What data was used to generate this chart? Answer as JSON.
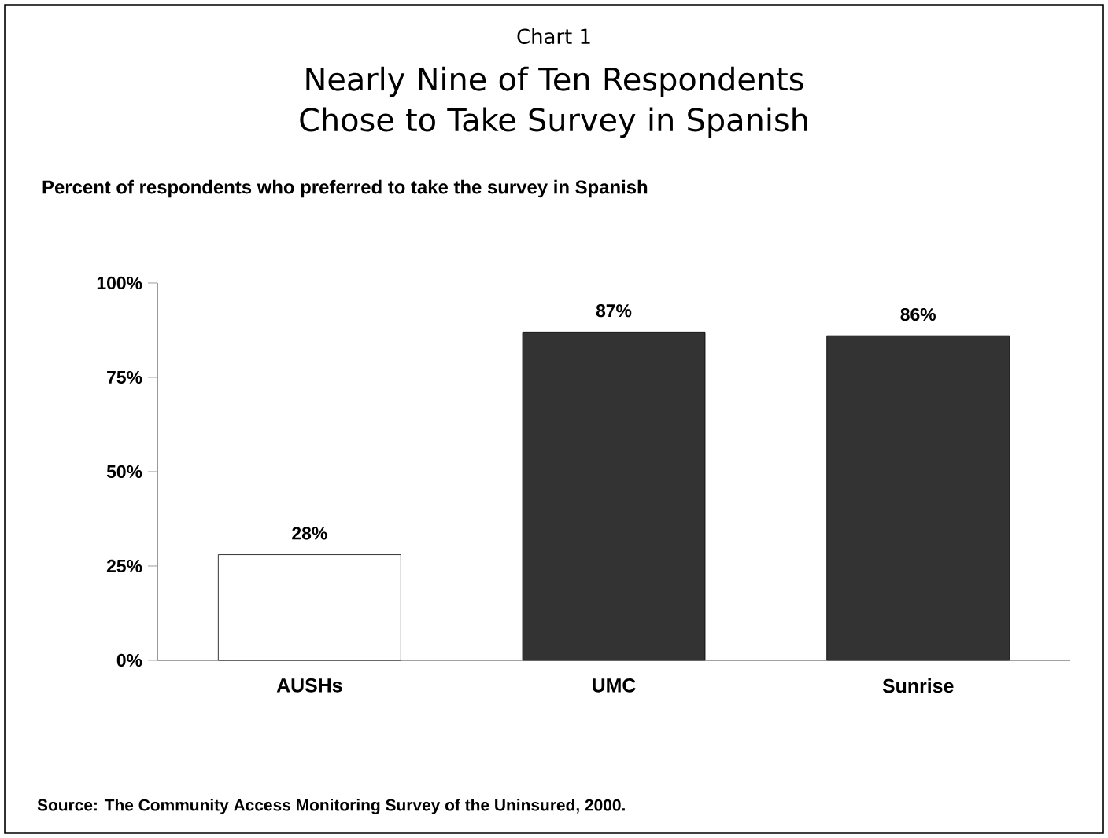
{
  "chart_data": {
    "type": "bar",
    "title": "Nearly Nine of Ten Respondents Chose to Take Survey in Spanish",
    "subtitle": "Chart 1",
    "ylabel": "Percent of respondents who preferred to take the survey in Spanish",
    "categories": [
      "AUSHs",
      "UMC",
      "Sunrise"
    ],
    "values": [
      28,
      87,
      86
    ],
    "colors": [
      "#ffffff",
      "#333333",
      "#333333"
    ],
    "value_labels": [
      "28%",
      "87%",
      "86%"
    ],
    "ylim": [
      0,
      100
    ],
    "yticks": [
      {
        "value": 0,
        "label": "0%"
      },
      {
        "value": 25,
        "label": "25%"
      },
      {
        "value": 50,
        "label": "50%"
      },
      {
        "value": 75,
        "label": "75%"
      },
      {
        "value": 100,
        "label": "100%"
      }
    ],
    "grid": false,
    "annotations": [
      "Source: The Community Access Monitoring Survey of the Uninsured, 2000."
    ]
  }
}
